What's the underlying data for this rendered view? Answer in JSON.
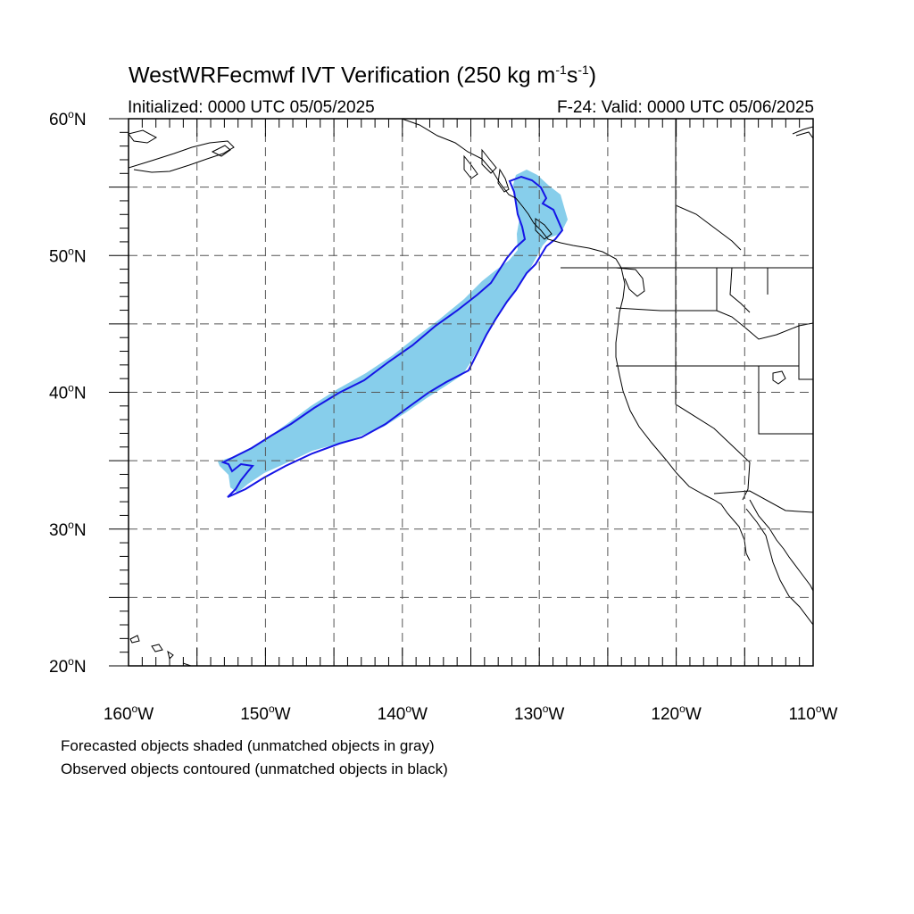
{
  "header": {
    "title_main": "WestWRFecmwf IVT Verification (250 kg m",
    "title_sup1": "-1",
    "title_mid": "s",
    "title_sup2": "-1",
    "title_end": ")",
    "initialized": "Initialized: 0000 UTC 05/05/2025",
    "valid": "F-24: Valid: 0000 UTC 05/06/2025"
  },
  "map": {
    "lon_range": [
      -160,
      -110
    ],
    "lat_range": [
      20,
      60
    ],
    "lat_labels": [
      {
        "value": 60,
        "text": "60",
        "hemi": "N"
      },
      {
        "value": 50,
        "text": "50",
        "hemi": "N"
      },
      {
        "value": 40,
        "text": "40",
        "hemi": "N"
      },
      {
        "value": 30,
        "text": "30",
        "hemi": "N"
      },
      {
        "value": 20,
        "text": "20",
        "hemi": "N"
      }
    ],
    "lon_labels": [
      {
        "value": -160,
        "text": "160",
        "hemi": "W"
      },
      {
        "value": -150,
        "text": "150",
        "hemi": "W"
      },
      {
        "value": -140,
        "text": "140",
        "hemi": "W"
      },
      {
        "value": -130,
        "text": "130",
        "hemi": "W"
      },
      {
        "value": -120,
        "text": "120",
        "hemi": "W"
      },
      {
        "value": -110,
        "text": "110",
        "hemi": "W"
      }
    ],
    "gridlines": "dashed every 5 degrees",
    "colors": {
      "forecast_fill": "#87ceeb",
      "observed_contour": "#1515e6",
      "coastline": "#000000",
      "gridline": "#555555"
    }
  },
  "footer": {
    "note1": "Forecasted objects shaded (unmatched objects in gray)",
    "note2": "Observed objects contoured (unmatched objects in black)"
  }
}
